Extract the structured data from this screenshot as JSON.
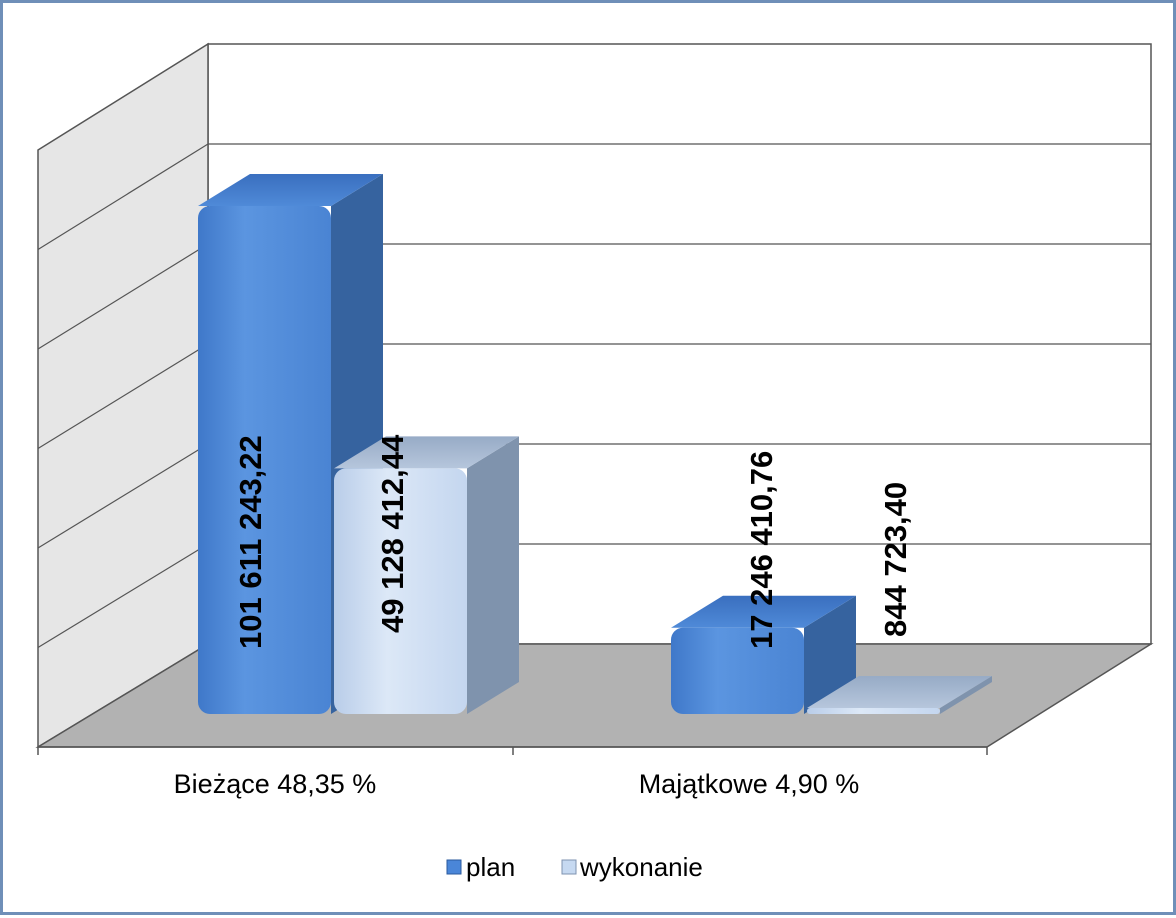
{
  "chart_data": {
    "type": "bar",
    "title": "",
    "xlabel": "",
    "ylabel": "",
    "categories": [
      "Bieżące 48,35 %",
      "Majątkowe 4,90 %"
    ],
    "series": [
      {
        "name": "plan",
        "values": [
          101611243.22,
          17246410.76
        ],
        "labels": [
          "101 611 243,22",
          "17 246 410,76"
        ],
        "color": "#4a86d8"
      },
      {
        "name": "wykonanie",
        "values": [
          49128412.44,
          844723.4
        ],
        "labels": [
          "49 128 412,44",
          "844 723,40"
        ],
        "color": "#c6d9f1"
      }
    ],
    "ylim": [
      0,
      120000000
    ],
    "grid": true,
    "legend_position": "bottom"
  }
}
